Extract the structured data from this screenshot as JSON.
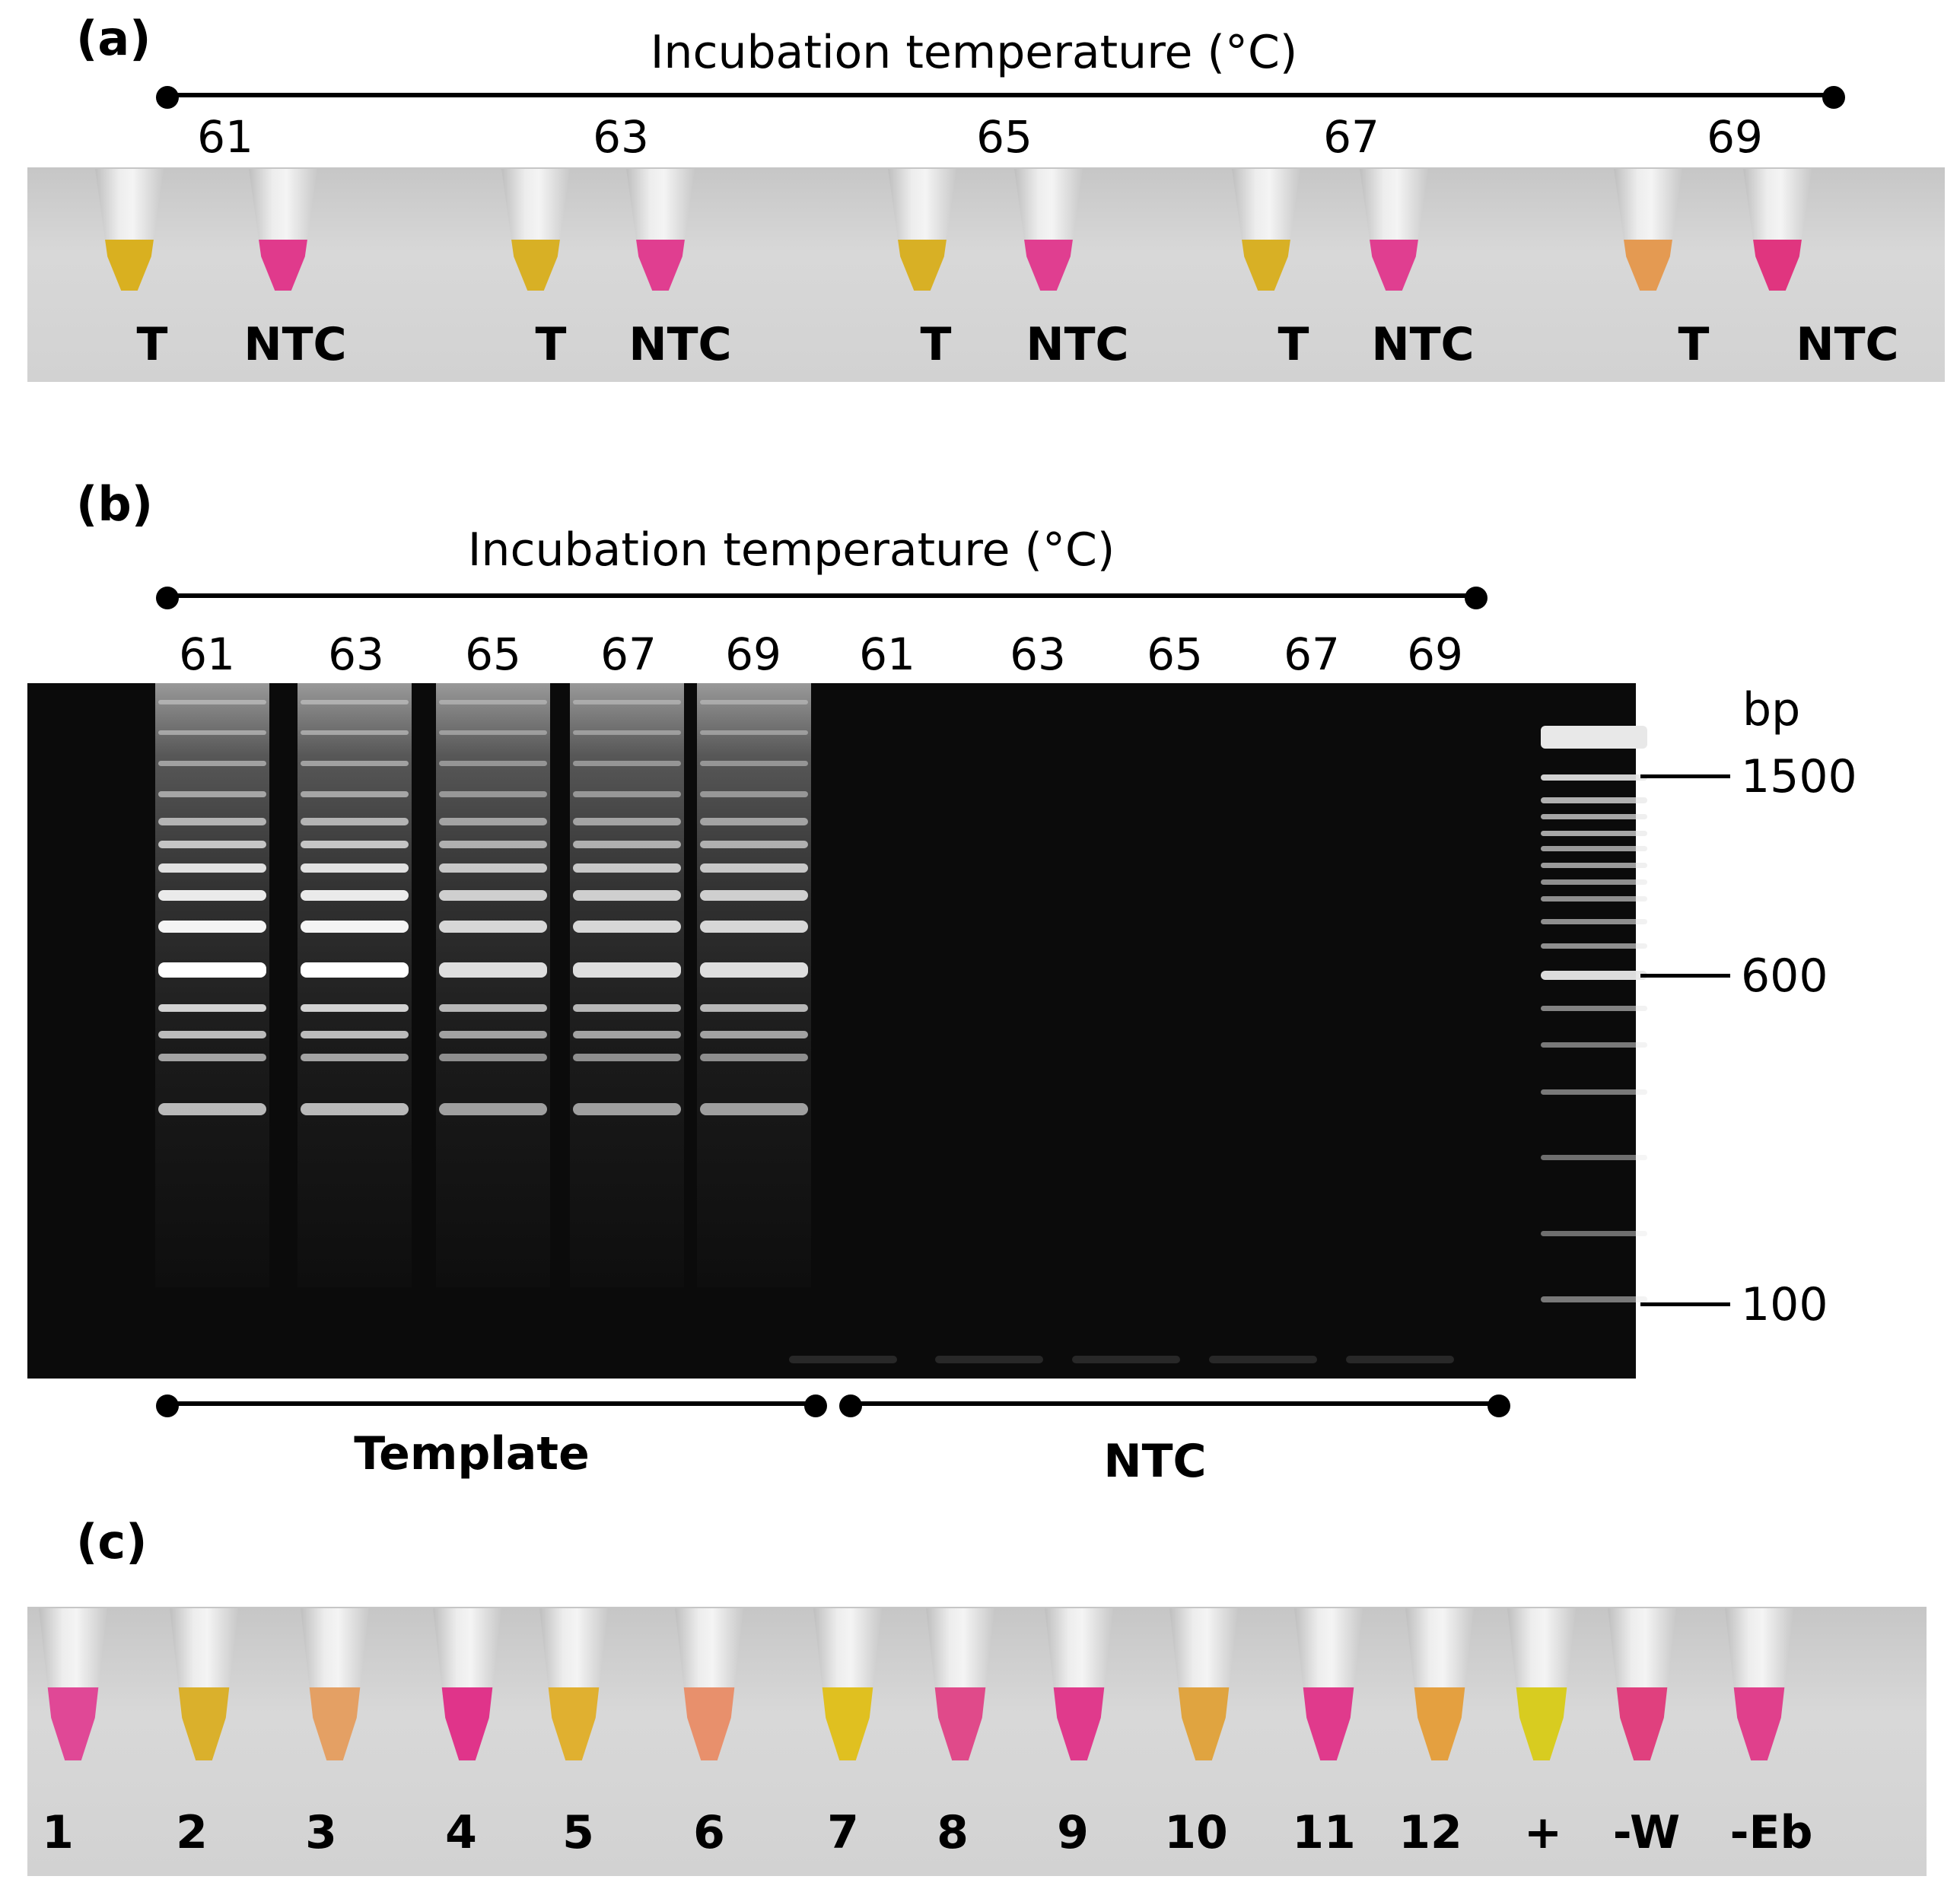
{
  "panel_a": {
    "label": "(a)",
    "title": "Incubation temperature (°C)",
    "temperatures": [
      "61",
      "63",
      "65",
      "67",
      "69"
    ],
    "tube_labels": [
      "T",
      "NTC",
      "T",
      "NTC",
      "T",
      "NTC",
      "T",
      "NTC",
      "T",
      "NTC"
    ],
    "tube_colors": [
      "#d9b020",
      "#e03a8c",
      "#d8b025",
      "#e03e90",
      "#d8b025",
      "#e03e90",
      "#d8b025",
      "#e03e90",
      "#e49a52",
      "#e0357f"
    ]
  },
  "panel_b": {
    "label": "(b)",
    "title": "Incubation temperature (°C)",
    "lane_temperatures": [
      "61",
      "63",
      "65",
      "67",
      "69",
      "61",
      "63",
      "65",
      "67",
      "69"
    ],
    "unit": "bp",
    "markers": [
      "1500",
      "600",
      "100"
    ],
    "group_template": "Template",
    "group_ntc": "NTC"
  },
  "panel_c": {
    "label": "(c)",
    "tube_labels": [
      "1",
      "2",
      "3",
      "4",
      "5",
      "6",
      "7",
      "8",
      "9",
      "10",
      "11",
      "12",
      "+",
      "-W",
      "-Eb"
    ],
    "tube_colors": [
      "#e04896",
      "#dab02c",
      "#e4a064",
      "#e0348a",
      "#e0b030",
      "#e8906c",
      "#e0c020",
      "#e04a8a",
      "#e03a8c",
      "#e0a440",
      "#e03a8c",
      "#e4a040",
      "#d8cc20",
      "#e0407e",
      "#e0408c"
    ]
  }
}
